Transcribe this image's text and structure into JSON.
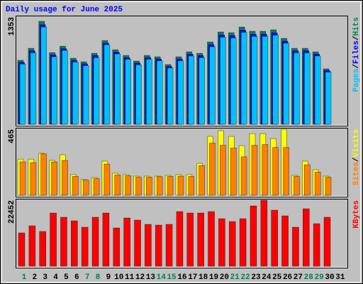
{
  "title": "Daily usage for June 2025",
  "separator": "/",
  "chart_data": [
    {
      "type": "bar",
      "ylim": [
        0,
        1353
      ],
      "yticks": [
        1353
      ],
      "series": [
        {
          "name": "Hits",
          "color": "#00805c",
          "values": [
            796,
            946,
            1282,
            893,
            972,
            822,
            778,
            884,
            1043,
            928,
            857,
            787,
            857,
            840,
            743,
            840,
            902,
            884,
            1025,
            1149,
            1140,
            1211,
            1158,
            1158,
            1176,
            1070,
            946,
            946,
            902,
            690,
            null
          ]
        },
        {
          "name": "Files",
          "color": "#0000ff",
          "values": [
            770,
            915,
            1240,
            865,
            940,
            795,
            752,
            855,
            1010,
            898,
            830,
            762,
            830,
            813,
            720,
            813,
            873,
            855,
            992,
            1112,
            1103,
            1172,
            1121,
            1121,
            1138,
            1035,
            915,
            915,
            873,
            668,
            null
          ]
        },
        {
          "name": "Pages",
          "color": "#00c0ff",
          "values": [
            750,
            890,
            1211,
            840,
            920,
            775,
            730,
            830,
            990,
            875,
            810,
            740,
            810,
            790,
            700,
            790,
            850,
            830,
            965,
            1085,
            1075,
            1145,
            1095,
            1095,
            1110,
            1010,
            890,
            890,
            850,
            650,
            null
          ]
        }
      ]
    },
    {
      "type": "bar",
      "ylim": [
        0,
        465
      ],
      "yticks": [
        465
      ],
      "series": [
        {
          "name": "Visits",
          "color": "#ffff00",
          "values": [
            249,
            249,
            289,
            240,
            279,
            142,
            108,
            122,
            235,
            152,
            142,
            132,
            132,
            132,
            137,
            142,
            142,
            220,
            406,
            445,
            406,
            342,
            425,
            425,
            391,
            455,
            137,
            235,
            176,
            132,
            null
          ]
        },
        {
          "name": "Sites",
          "color": "#ff8000",
          "values": [
            230,
            225,
            285,
            230,
            240,
            130,
            105,
            115,
            215,
            140,
            135,
            125,
            125,
            128,
            130,
            132,
            130,
            205,
            360,
            345,
            325,
            265,
            345,
            350,
            330,
            330,
            130,
            210,
            160,
            125,
            null
          ]
        }
      ]
    },
    {
      "type": "bar",
      "ylim": [
        0,
        22452
      ],
      "yticks": [
        22452
      ],
      "categories": [
        "1",
        "2",
        "3",
        "4",
        "5",
        "6",
        "7",
        "8",
        "9",
        "10",
        "11",
        "12",
        "13",
        "14",
        "15",
        "16",
        "17",
        "18",
        "19",
        "20",
        "21",
        "22",
        "23",
        "24",
        "25",
        "26",
        "27",
        "28",
        "29",
        "30",
        "31"
      ],
      "category_colors": [
        "#00805c",
        "#000000",
        "#000000",
        "#000000",
        "#000000",
        "#000000",
        "#00805c",
        "#00805c",
        "#000000",
        "#000000",
        "#000000",
        "#000000",
        "#000000",
        "#00805c",
        "#00805c",
        "#000000",
        "#000000",
        "#000000",
        "#000000",
        "#000000",
        "#00805c",
        "#00805c",
        "#000000",
        "#000000",
        "#000000",
        "#000000",
        "#000000",
        "#00805c",
        "#00805c",
        "#000000",
        "#000000"
      ],
      "series": [
        {
          "name": "KBytes",
          "color": "#ff0000",
          "values": [
            11106,
            13469,
            11579,
            17722,
            16305,
            15123,
            12996,
            16305,
            17722,
            12759,
            16068,
            15359,
            13941,
            13705,
            13941,
            18195,
            17722,
            17722,
            18195,
            15832,
            14887,
            15832,
            20085,
            21976,
            18668,
            16777,
            12996,
            19140,
            14178,
            16305,
            null
          ]
        }
      ]
    }
  ]
}
